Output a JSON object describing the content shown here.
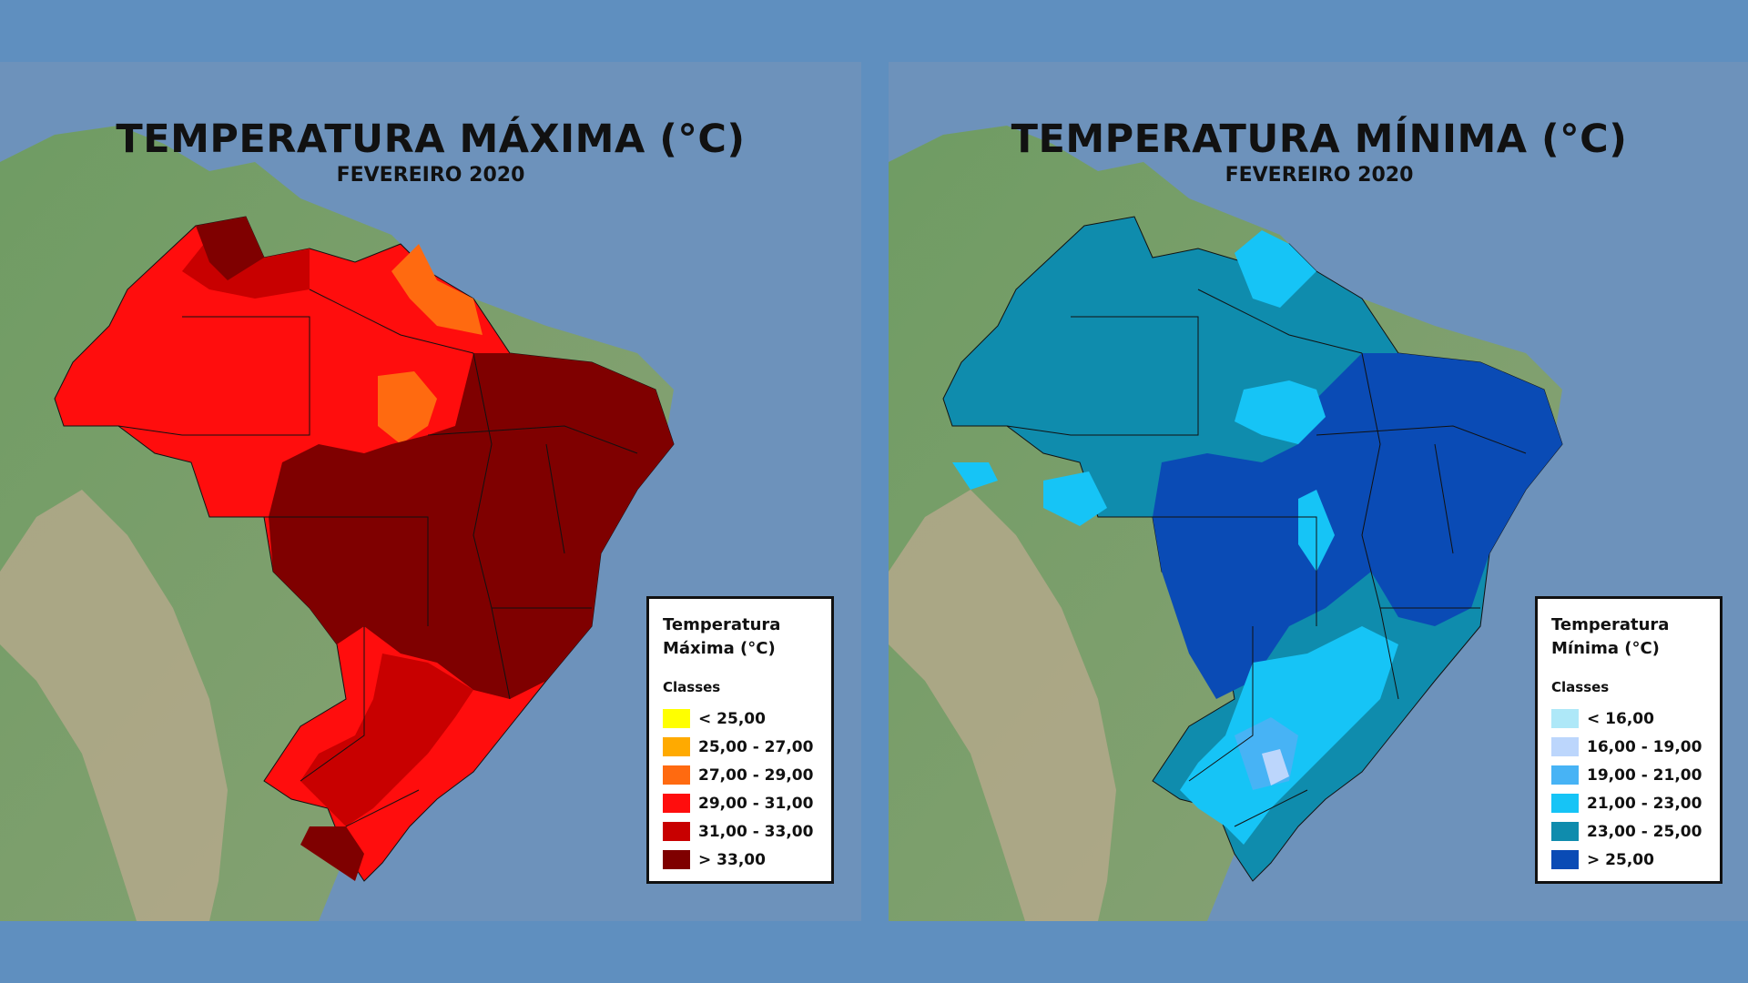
{
  "panels": {
    "max": {
      "title": "TEMPERATURA MÁXIMA (°C)",
      "subtitle": "FEVEREIRO 2020",
      "legend_title_line1": "Temperatura",
      "legend_title_line2": "Máxima (°C)",
      "legend_classes_label": "Classes",
      "classes": [
        {
          "label": "< 25,00",
          "color": "#ffff00"
        },
        {
          "label": "25,00 - 27,00",
          "color": "#ffaa00"
        },
        {
          "label": "27,00 - 29,00",
          "color": "#ff6a10"
        },
        {
          "label": "29,00 - 31,00",
          "color": "#ff0d0d"
        },
        {
          "label": "31,00 - 33,00",
          "color": "#c80000"
        },
        {
          "label": "> 33,00",
          "color": "#7f0000"
        }
      ]
    },
    "min": {
      "title": "TEMPERATURA MÍNIMA (°C)",
      "subtitle": "FEVEREIRO 2020",
      "legend_title_line1": "Temperatura",
      "legend_title_line2": "Mínima (°C)",
      "legend_classes_label": "Classes",
      "classes": [
        {
          "label": "< 16,00",
          "color": "#aee8f8"
        },
        {
          "label": "16,00 - 19,00",
          "color": "#bcd6fc"
        },
        {
          "label": "19,00 - 21,00",
          "color": "#47b3f5"
        },
        {
          "label": "21,00 - 23,00",
          "color": "#16c4f6"
        },
        {
          "label": "23,00 - 25,00",
          "color": "#0f8cad"
        },
        {
          "label": "> 25,00",
          "color": "#0a4bb5"
        }
      ]
    }
  },
  "colors": {
    "ocean": "#6d92bb",
    "land": "#6f9c63",
    "mountains": "#b7a98c",
    "background": "#5f8fbf"
  }
}
